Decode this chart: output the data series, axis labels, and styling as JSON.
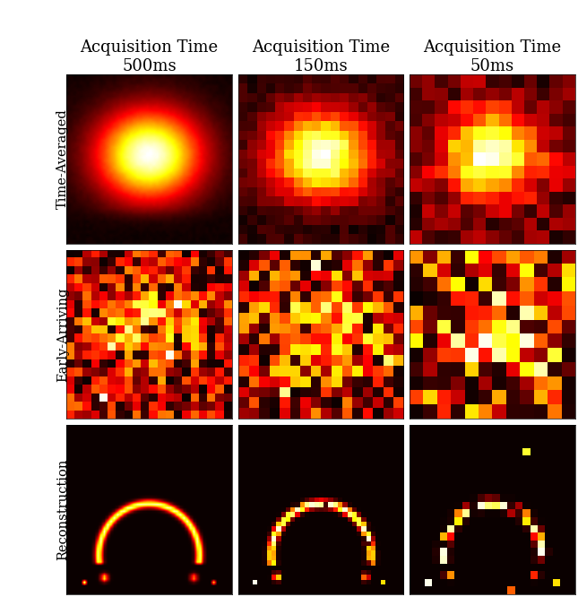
{
  "col_titles": [
    "Acquisition Time\n500ms",
    "Acquisition Time\n150ms",
    "Acquisition Time\n50ms"
  ],
  "row_labels": [
    "Time-Averaged",
    "Early-Arriving",
    "Reconstruction"
  ],
  "title_fontsize": 13,
  "label_fontsize": 10.5,
  "background_color": "#ffffff",
  "seeds": [
    1,
    2,
    3
  ]
}
